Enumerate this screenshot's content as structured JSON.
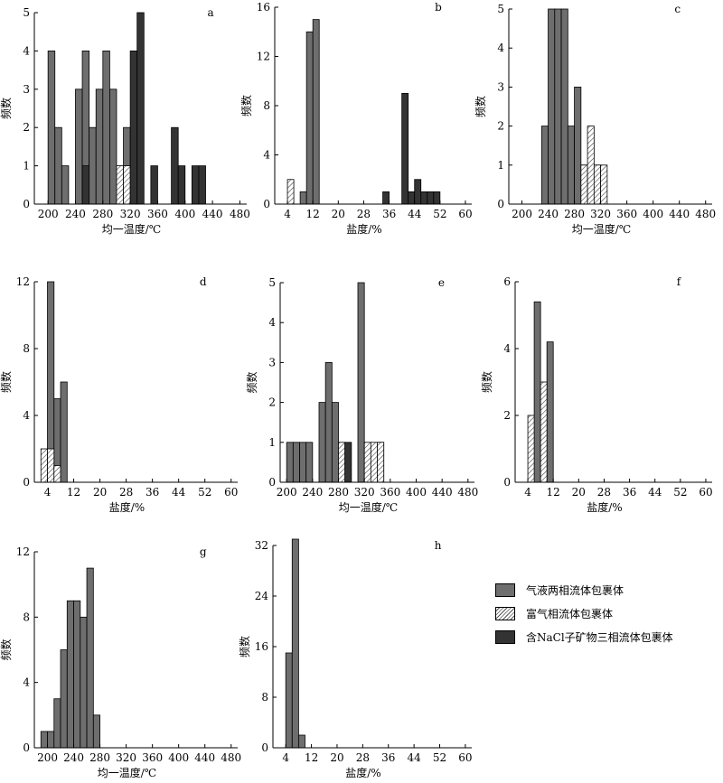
{
  "colors": {
    "two_phase": "#6e6e6e",
    "gas_rich": "hatch",
    "nacl": "#333333"
  },
  "legend": {
    "items": [
      {
        "key": "two_phase",
        "label": "气液两相流体包裹体"
      },
      {
        "key": "gas_rich",
        "label": "富气相流体包裹体"
      },
      {
        "key": "nacl",
        "label": "含NaCl子矿物三相流体包裹体"
      }
    ]
  },
  "chart_data": [
    {
      "id": "a",
      "type": "bar",
      "panel_label": "a",
      "xlabel": "均一温度/℃",
      "ylabel": "频数",
      "xlim": [
        180,
        490
      ],
      "ylim": [
        0,
        5
      ],
      "bin_width": 10,
      "xticks": [
        200,
        240,
        280,
        320,
        360,
        400,
        440,
        480
      ],
      "yticks": [
        0,
        1,
        2,
        3,
        4,
        5
      ],
      "series": [
        {
          "name": "气液两相流体包裹体",
          "key": "two_phase",
          "x": [
            200,
            210,
            220,
            240,
            250,
            260,
            270,
            280,
            290,
            310
          ],
          "values": [
            4,
            2,
            1,
            3,
            4,
            2,
            3,
            4,
            3,
            2
          ]
        },
        {
          "name": "富气相流体包裹体",
          "key": "gas_rich",
          "x": [
            300,
            310
          ],
          "values": [
            1,
            1
          ]
        },
        {
          "name": "含NaCl子矿物三相流体包裹体",
          "key": "nacl",
          "x": [
            250,
            320,
            330,
            350,
            380,
            390,
            410,
            420
          ],
          "values": [
            1,
            4,
            5,
            1,
            2,
            1,
            1,
            1
          ]
        }
      ]
    },
    {
      "id": "b",
      "type": "bar",
      "panel_label": "b",
      "xlabel": "盐度/%",
      "ylabel": "频数",
      "xlim": [
        0,
        62
      ],
      "ylim": [
        0,
        16
      ],
      "bin_width": 2,
      "xticks": [
        4,
        12,
        20,
        28,
        36,
        44,
        52,
        60
      ],
      "yticks": [
        0,
        4,
        8,
        12,
        16
      ],
      "series": [
        {
          "name": "富气相流体包裹体",
          "key": "gas_rich",
          "x": [
            4
          ],
          "values": [
            2
          ]
        },
        {
          "name": "气液两相流体包裹体",
          "key": "two_phase",
          "x": [
            8,
            10,
            12
          ],
          "values": [
            1,
            14,
            15
          ]
        },
        {
          "name": "含NaCl子矿物三相流体包裹体",
          "key": "nacl",
          "x": [
            34,
            40,
            42,
            44,
            46,
            48,
            50
          ],
          "values": [
            1,
            9,
            1,
            2,
            1,
            1,
            1
          ]
        }
      ]
    },
    {
      "id": "c",
      "type": "bar",
      "panel_label": "c",
      "xlabel": "均一温度/℃",
      "ylabel": "频数",
      "xlim": [
        180,
        490
      ],
      "ylim": [
        0,
        5
      ],
      "bin_width": 10,
      "xticks": [
        200,
        240,
        280,
        320,
        360,
        400,
        440,
        480
      ],
      "yticks": [
        0,
        1,
        2,
        3,
        4,
        5
      ],
      "series": [
        {
          "name": "气液两相流体包裹体",
          "key": "two_phase",
          "x": [
            230,
            240,
            250,
            260,
            270,
            280,
            290,
            310
          ],
          "values": [
            2,
            5,
            5,
            5,
            2,
            3,
            1,
            1
          ]
        },
        {
          "name": "富气相流体包裹体",
          "key": "gas_rich",
          "x": [
            290,
            300,
            310,
            320
          ],
          "values": [
            1,
            2,
            1,
            1
          ]
        }
      ]
    },
    {
      "id": "d",
      "type": "bar",
      "panel_label": "d",
      "xlabel": "盐度/%",
      "ylabel": "频数",
      "xlim": [
        0,
        62
      ],
      "ylim": [
        0,
        12
      ],
      "bin_width": 2,
      "xticks": [
        4,
        12,
        20,
        28,
        36,
        44,
        52,
        60
      ],
      "yticks": [
        0,
        4,
        8,
        12
      ],
      "series": [
        {
          "name": "气液两相流体包裹体",
          "key": "two_phase",
          "x": [
            4,
            6,
            8
          ],
          "values": [
            12,
            5,
            6
          ]
        },
        {
          "name": "富气相流体包裹体",
          "key": "gas_rich",
          "x": [
            2,
            4,
            6
          ],
          "values": [
            2,
            2,
            1
          ]
        }
      ]
    },
    {
      "id": "e",
      "type": "bar",
      "panel_label": "e",
      "xlabel": "均一温度/℃",
      "ylabel": "频数",
      "xlim": [
        190,
        490
      ],
      "ylim": [
        0,
        5
      ],
      "bin_width": 10,
      "xticks": [
        200,
        240,
        280,
        320,
        360,
        400,
        440,
        480
      ],
      "yticks": [
        0,
        1,
        2,
        3,
        4,
        5
      ],
      "series": [
        {
          "name": "气液两相流体包裹体",
          "key": "two_phase",
          "x": [
            200,
            210,
            220,
            230,
            250,
            260,
            270,
            310,
            340
          ],
          "values": [
            1,
            1,
            1,
            1,
            2,
            3,
            2,
            5,
            1
          ]
        },
        {
          "name": "富气相流体包裹体",
          "key": "gas_rich",
          "x": [
            280,
            320,
            330,
            340
          ],
          "values": [
            1,
            1,
            1,
            1
          ]
        },
        {
          "name": "含NaCl子矿物三相流体包裹体",
          "key": "nacl",
          "x": [
            290
          ],
          "values": [
            1
          ]
        }
      ]
    },
    {
      "id": "f",
      "type": "bar",
      "panel_label": "f",
      "xlabel": "盐度/%",
      "ylabel": "频数",
      "xlim": [
        0,
        62
      ],
      "ylim": [
        0,
        6
      ],
      "bin_width": 2,
      "xticks": [
        4,
        12,
        20,
        28,
        36,
        44,
        52,
        60
      ],
      "yticks": [
        0,
        2,
        4,
        6
      ],
      "series": [
        {
          "name": "气液两相流体包裹体",
          "key": "two_phase",
          "x": [
            6,
            10
          ],
          "values": [
            5.4,
            4.2
          ]
        },
        {
          "name": "富气相流体包裹体",
          "key": "gas_rich",
          "x": [
            4,
            8
          ],
          "values": [
            2,
            3
          ]
        }
      ]
    },
    {
      "id": "g",
      "type": "bar",
      "panel_label": "g",
      "xlabel": "均一温度/℃",
      "ylabel": "频数",
      "xlim": [
        180,
        490
      ],
      "ylim": [
        0,
        12
      ],
      "bin_width": 10,
      "xticks": [
        200,
        240,
        280,
        320,
        360,
        400,
        440,
        480
      ],
      "yticks": [
        0,
        4,
        8,
        12
      ],
      "series": [
        {
          "name": "气液两相流体包裹体",
          "key": "two_phase",
          "x": [
            190,
            200,
            210,
            220,
            230,
            240,
            250,
            260,
            270
          ],
          "values": [
            1,
            1,
            3,
            6,
            9,
            9,
            8,
            11,
            2
          ]
        }
      ]
    },
    {
      "id": "h",
      "type": "bar",
      "panel_label": "h",
      "xlabel": "盐度/%",
      "ylabel": "频数",
      "xlim": [
        0,
        62
      ],
      "ylim": [
        0,
        32
      ],
      "bin_width": 2,
      "xticks": [
        4,
        12,
        20,
        28,
        36,
        44,
        52,
        60
      ],
      "yticks": [
        0,
        8,
        16,
        24,
        32
      ],
      "series": [
        {
          "name": "气液两相流体包裹体",
          "key": "two_phase",
          "x": [
            4,
            6,
            8
          ],
          "values": [
            15,
            33,
            2
          ]
        }
      ]
    }
  ]
}
